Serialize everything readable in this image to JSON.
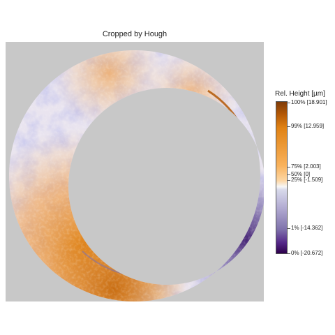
{
  "title": "Cropped by Hough",
  "colorbar": {
    "title": "Rel. Height [µm]",
    "ticks": [
      {
        "label": "100% [18.901]"
      },
      {
        "label": "99% [12.959]"
      },
      {
        "label": "75% [2.003]"
      },
      {
        "label": "50% [0]"
      },
      {
        "label": "25% [-1.509]"
      },
      {
        "label": "1% [-14.362]"
      },
      {
        "label": "0% [-20.672]"
      }
    ]
  },
  "colors": {
    "background": "#c8c8c8",
    "orange_high": "#e08214",
    "purple_low": "#542788",
    "neutral": "#f7f7f7"
  }
}
